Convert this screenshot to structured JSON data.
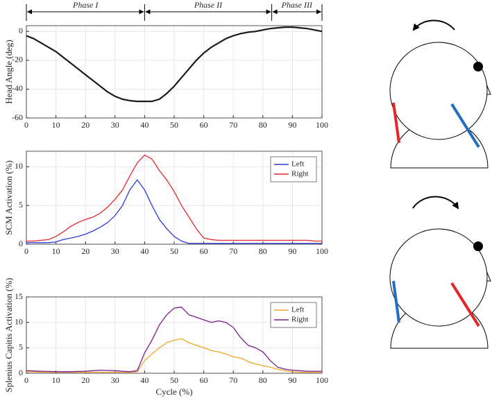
{
  "chart_data": [
    {
      "type": "line",
      "ylabel": "Head Angle (deg)",
      "color": "#1a1a1a",
      "x": [
        0,
        2.5,
        5,
        7.5,
        10,
        12.5,
        15,
        17.5,
        20,
        22.5,
        25,
        27.5,
        30,
        32.5,
        35,
        37.5,
        40,
        42.5,
        45,
        47.5,
        50,
        52.5,
        55,
        57.5,
        60,
        62.5,
        65,
        67.5,
        70,
        72.5,
        75,
        77.5,
        80,
        82.5,
        85,
        87.5,
        90,
        92.5,
        95,
        97.5,
        100
      ],
      "values": [
        -3,
        -5,
        -8,
        -11,
        -14,
        -18,
        -22,
        -26,
        -30,
        -34,
        -38,
        -42,
        -45,
        -47,
        -48,
        -48.5,
        -48.5,
        -48.5,
        -47,
        -43,
        -38,
        -32,
        -26,
        -20,
        -15,
        -11,
        -8,
        -5,
        -3,
        -1.5,
        -0.5,
        0,
        1,
        2,
        2.5,
        3,
        3,
        2.5,
        2,
        1,
        0
      ],
      "xlim": [
        0,
        100
      ],
      "xticks": [
        0,
        10,
        20,
        30,
        40,
        50,
        60,
        70,
        80,
        90,
        100
      ],
      "ylim": [
        -60,
        4
      ],
      "yticks": [
        -60,
        -40,
        -20,
        0
      ],
      "grid": true,
      "phases": [
        {
          "label": "Phase I",
          "start": 0,
          "end": 40
        },
        {
          "label": "Phase II",
          "start": 40,
          "end": 83
        },
        {
          "label": "Phase III",
          "start": 83,
          "end": 100
        }
      ]
    },
    {
      "type": "line",
      "ylabel": "SCM Activation (%)",
      "legend": "upper right",
      "x": [
        0,
        2.5,
        5,
        7.5,
        10,
        12.5,
        15,
        17.5,
        20,
        22.5,
        25,
        27.5,
        30,
        32.5,
        35,
        37.5,
        40,
        42.5,
        45,
        47.5,
        50,
        52.5,
        55,
        57.5,
        60,
        62.5,
        65,
        67.5,
        70,
        72.5,
        75,
        77.5,
        80,
        82.5,
        85,
        87.5,
        90,
        92.5,
        95,
        97.5,
        100
      ],
      "series": [
        {
          "name": "Left",
          "color": "#2b3bd6",
          "values": [
            0.2,
            0.2,
            0.2,
            0.2,
            0.3,
            0.6,
            0.8,
            1.0,
            1.3,
            1.7,
            2.2,
            2.8,
            3.7,
            5.0,
            7.0,
            8.3,
            7.0,
            5.0,
            3.2,
            2.0,
            1.0,
            0.4,
            0.1,
            0.1,
            0.1,
            0.1,
            0.1,
            0.1,
            0.1,
            0.1,
            0.1,
            0.1,
            0.1,
            0.1,
            0.1,
            0.1,
            0.1,
            0.1,
            0.1,
            0.1,
            0.1
          ]
        },
        {
          "name": "Right",
          "color": "#e3262a",
          "values": [
            0.4,
            0.4,
            0.5,
            0.6,
            1.0,
            1.6,
            2.3,
            2.8,
            3.2,
            3.5,
            4.0,
            4.8,
            5.8,
            7.0,
            8.8,
            10.5,
            11.5,
            11.0,
            9.5,
            8.3,
            6.8,
            5.0,
            3.5,
            2.0,
            0.8,
            0.6,
            0.5,
            0.5,
            0.5,
            0.5,
            0.5,
            0.5,
            0.5,
            0.5,
            0.5,
            0.5,
            0.5,
            0.5,
            0.5,
            0.4,
            0.4
          ]
        }
      ],
      "xlim": [
        0,
        100
      ],
      "xticks": [
        0,
        10,
        20,
        30,
        40,
        50,
        60,
        70,
        80,
        90,
        100
      ],
      "ylim": [
        0,
        12
      ],
      "yticks": [
        0,
        5,
        10
      ],
      "grid": true
    },
    {
      "type": "line",
      "ylabel": "Splenius Capitis Activation (%)",
      "xlabel": "Cycle (%)",
      "legend": "upper right",
      "x": [
        0,
        2.5,
        5,
        7.5,
        10,
        12.5,
        15,
        17.5,
        20,
        22.5,
        25,
        27.5,
        30,
        32.5,
        35,
        37.5,
        40,
        42.5,
        45,
        47.5,
        50,
        52.5,
        55,
        57.5,
        60,
        62.5,
        65,
        67.5,
        70,
        72.5,
        75,
        77.5,
        80,
        82.5,
        85,
        87.5,
        90,
        92.5,
        95,
        97.5,
        100
      ],
      "series": [
        {
          "name": "Left",
          "color": "#f0a628",
          "values": [
            0.3,
            0.3,
            0.2,
            0.2,
            0.2,
            0.2,
            0.2,
            0.2,
            0.2,
            0.2,
            0.2,
            0.2,
            0.2,
            0.2,
            0.2,
            0.3,
            2.5,
            3.8,
            5.0,
            6.0,
            6.5,
            6.8,
            6.0,
            5.5,
            5.0,
            4.5,
            4.2,
            3.8,
            3.2,
            3.0,
            2.3,
            1.8,
            1.5,
            1.2,
            0.8,
            0.5,
            0.3,
            0.2,
            0.2,
            0.2,
            0.2
          ]
        },
        {
          "name": "Right",
          "color": "#7b1d8c",
          "values": [
            0.5,
            0.45,
            0.4,
            0.35,
            0.3,
            0.3,
            0.3,
            0.35,
            0.4,
            0.5,
            0.6,
            0.55,
            0.5,
            0.4,
            0.3,
            0.5,
            4.0,
            6.5,
            9.5,
            11.5,
            12.8,
            13.0,
            11.5,
            11.0,
            10.5,
            10.0,
            10.3,
            10.0,
            9.0,
            7.0,
            5.5,
            5.0,
            4.2,
            2.5,
            1.2,
            0.8,
            0.6,
            0.5,
            0.4,
            0.4,
            0.4
          ]
        }
      ],
      "xlim": [
        0,
        100
      ],
      "xticks": [
        0,
        10,
        20,
        30,
        40,
        50,
        60,
        70,
        80,
        90,
        100
      ],
      "ylim": [
        0,
        15
      ],
      "yticks": [
        0,
        5,
        10,
        15
      ],
      "grid": true
    }
  ]
}
